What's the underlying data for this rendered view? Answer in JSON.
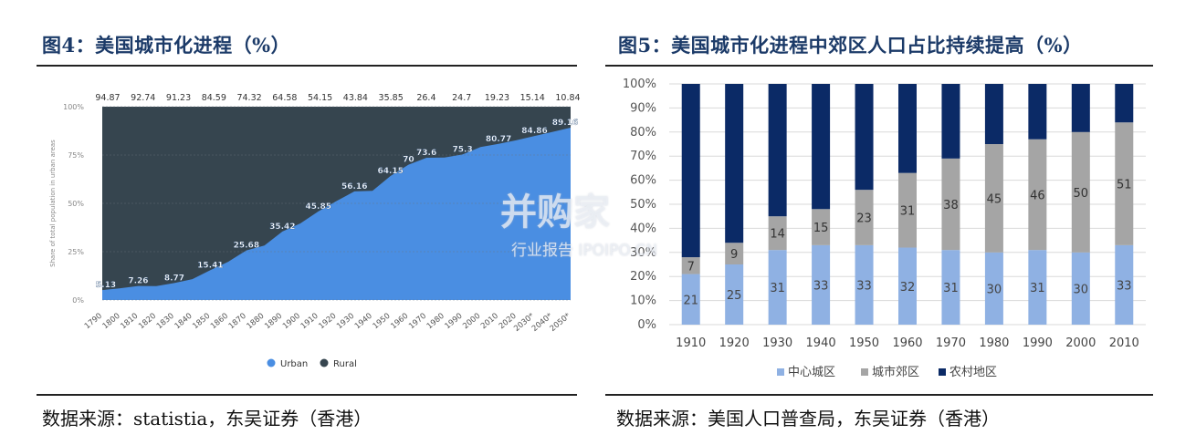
{
  "left": {
    "title": "图4：美国城市化进程（%）",
    "source": "数据来源：statistia，东吴证券（香港）"
  },
  "right": {
    "title": "图5：美国城市化进程中郊区人口占比持续提高（%）",
    "source": "数据来源：美国人口普查局，东吴证券（香港）"
  },
  "watermark": {
    "main": "并购家",
    "sub": "行业报告 IPOIPO.CN"
  },
  "colors": {
    "urban": "#4a8ee2",
    "rural": "#36454f",
    "title": "#1b3a68",
    "central": "#8fb1e3",
    "suburb": "#a5a5a5",
    "farm": "#0b2a66"
  },
  "chart_data": [
    {
      "type": "area",
      "x": [
        "1790",
        "1800",
        "1810",
        "1820",
        "1830",
        "1840",
        "1850",
        "1860",
        "1870",
        "1880",
        "1890",
        "1900",
        "1910",
        "1920",
        "1930",
        "1940",
        "1950",
        "1960",
        "1970",
        "1980",
        "1990",
        "2000",
        "2010",
        "2020",
        "2030*",
        "2040*",
        "2050*"
      ],
      "series": [
        {
          "name": "Urban",
          "values": [
            5.13,
            6.1,
            7.26,
            7.2,
            8.77,
            10.8,
            15.41,
            19.8,
            25.68,
            28.2,
            35.42,
            39.6,
            45.85,
            51.2,
            56.16,
            56.5,
            64.15,
            70,
            73.6,
            73.7,
            75.3,
            79.1,
            80.77,
            82.7,
            84.86,
            87.0,
            89.16
          ]
        },
        {
          "name": "Rural",
          "values": [
            94.87,
            null,
            92.74,
            null,
            91.23,
            null,
            84.59,
            null,
            74.32,
            null,
            64.58,
            null,
            54.15,
            null,
            43.84,
            null,
            35.85,
            null,
            26.4,
            null,
            24.7,
            null,
            19.23,
            null,
            15.14,
            null,
            10.84
          ]
        }
      ],
      "urban_labels": [
        {
          "x": "1790",
          "text": "5.13"
        },
        {
          "x": "1810",
          "text": "7.26"
        },
        {
          "x": "1830",
          "text": "8.77"
        },
        {
          "x": "1850",
          "text": "15.41"
        },
        {
          "x": "1870",
          "text": "25.68"
        },
        {
          "x": "1890",
          "text": "35.42"
        },
        {
          "x": "1910",
          "text": "45.85"
        },
        {
          "x": "1930",
          "text": "56.16"
        },
        {
          "x": "1950",
          "text": "64.15"
        },
        {
          "x": "1960",
          "text": "70"
        },
        {
          "x": "1970",
          "text": "73.6"
        },
        {
          "x": "1990",
          "text": "75.3"
        },
        {
          "x": "2010",
          "text": "80.77"
        },
        {
          "x": "2030*",
          "text": "84.86"
        },
        {
          "x": "2050*",
          "text": "89.16"
        }
      ],
      "top_labels": [
        "94.87",
        "92.74",
        "91.23",
        "84.59",
        "74.32",
        "64.58",
        "54.15",
        "43.84",
        "35.85",
        "26.4",
        "24.7",
        "19.23",
        "15.14",
        "10.84"
      ],
      "yticks": [
        "0%",
        "25%",
        "50%",
        "75%",
        "100%"
      ],
      "ylim": [
        0,
        100
      ],
      "ylabel": "Share of total population in urban areas",
      "legend": [
        "Urban",
        "Rural"
      ],
      "legend_position": "bottom"
    },
    {
      "type": "bar",
      "stacked": true,
      "categories": [
        "1910",
        "1920",
        "1930",
        "1940",
        "1950",
        "1960",
        "1970",
        "1980",
        "1990",
        "2000",
        "2010"
      ],
      "series": [
        {
          "name": "中心城区",
          "values": [
            21,
            25,
            31,
            33,
            33,
            32,
            31,
            30,
            31,
            30,
            33
          ]
        },
        {
          "name": "城市郊区",
          "values": [
            7,
            9,
            14,
            15,
            23,
            31,
            38,
            45,
            46,
            50,
            51
          ]
        },
        {
          "name": "农村地区",
          "values": [
            72,
            66,
            55,
            52,
            44,
            37,
            31,
            25,
            23,
            20,
            16
          ]
        }
      ],
      "yticks": [
        "0%",
        "10%",
        "20%",
        "30%",
        "40%",
        "50%",
        "60%",
        "70%",
        "80%",
        "90%",
        "100%"
      ],
      "ylim": [
        0,
        100
      ],
      "grid": true,
      "legend_position": "bottom"
    }
  ]
}
